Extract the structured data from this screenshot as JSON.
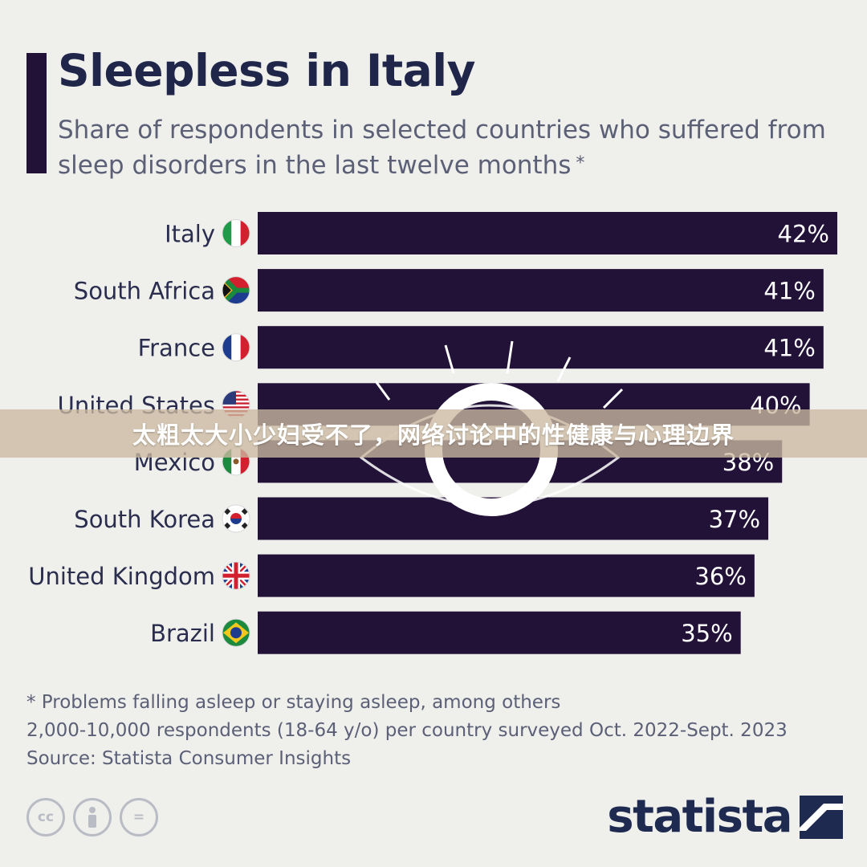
{
  "header": {
    "title": "Sleepless in Italy",
    "subtitle": "Share of respondents in selected countries who suffered from sleep disorders in the last twelve months",
    "subtitle_mark": "*"
  },
  "chart_data": {
    "type": "bar",
    "orientation": "horizontal",
    "title": "Sleepless in Italy",
    "subtitle": "Share of respondents in selected countries who suffered from sleep disorders in the last twelve months",
    "categories": [
      "Italy",
      "South Africa",
      "France",
      "United States",
      "Mexico",
      "South Korea",
      "United Kingdom",
      "Brazil"
    ],
    "values": [
      42,
      41,
      41,
      40,
      38,
      37,
      36,
      35
    ],
    "value_labels": [
      "42%",
      "41%",
      "41%",
      "40%",
      "38%",
      "37%",
      "36%",
      "35%"
    ],
    "unit": "%",
    "xlim": [
      0,
      42
    ],
    "grid": false,
    "legend": "none",
    "bar_color": "#231238",
    "label_color": "#ffffff"
  },
  "flags": [
    "italy-flag-icon",
    "south-africa-flag-icon",
    "france-flag-icon",
    "united-states-flag-icon",
    "mexico-flag-icon",
    "south-korea-flag-icon",
    "united-kingdom-flag-icon",
    "brazil-flag-icon"
  ],
  "footnotes": {
    "note": "* Problems falling asleep or staying asleep, among others",
    "sample": "2,000-10,000 respondents (18-64 y/o) per country surveyed Oct. 2022-Sept. 2023",
    "source": "Source: Statista Consumer Insights"
  },
  "license_icons": [
    "cc-icon",
    "attribution-icon",
    "no-derivatives-icon"
  ],
  "license_labels": {
    "cc": "cc",
    "equals": "="
  },
  "logo": {
    "text": "statista",
    "icon": "statista-logo-icon"
  },
  "overlay": {
    "text": "太粗太大小少妇受不了，网络讨论中的性健康与心理边界"
  },
  "colors": {
    "background": "#efefec",
    "bar": "#231238",
    "title": "#20254a",
    "subtitle": "#5c6077",
    "overlay_band": "#cbb9a0"
  }
}
